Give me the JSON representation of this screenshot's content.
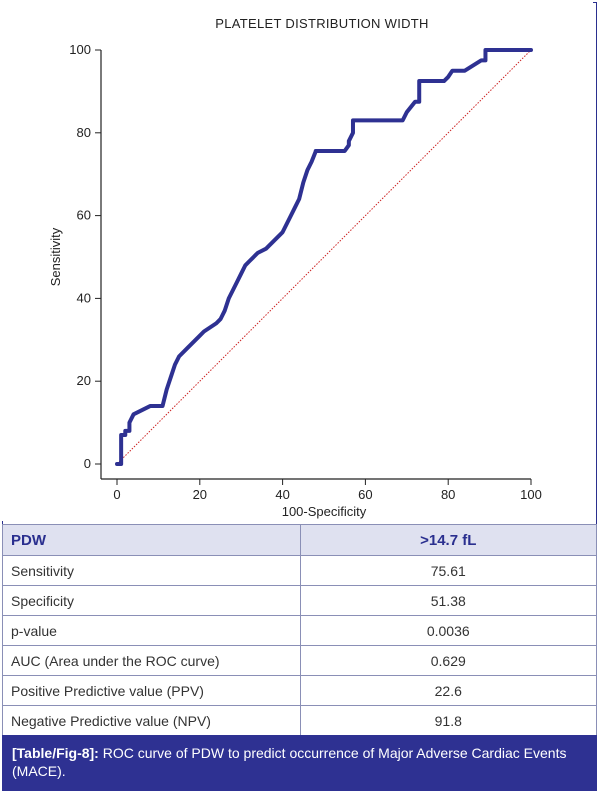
{
  "chart_data": {
    "type": "line",
    "title": "PLATELET DISTRIBUTION WIDTH",
    "xlabel": "100-Specificity",
    "ylabel": "Sensitivity",
    "xlim": [
      0,
      100
    ],
    "ylim": [
      0,
      100
    ],
    "xticks": [
      0,
      20,
      40,
      60,
      80,
      100
    ],
    "yticks": [
      0,
      20,
      40,
      60,
      80,
      100
    ],
    "series": [
      {
        "x": [
          0,
          1,
          1,
          2,
          2,
          3,
          3,
          4,
          8,
          11,
          12,
          13,
          14,
          15,
          17,
          18,
          20,
          21,
          24,
          25,
          26,
          27,
          28,
          29,
          30,
          31,
          32,
          33,
          34,
          36,
          38,
          40,
          41,
          42,
          43,
          44,
          45,
          46,
          47,
          48,
          48,
          53,
          55,
          56,
          56,
          57,
          57,
          61,
          65,
          69,
          70,
          72,
          73,
          73,
          76,
          79,
          80,
          81,
          84,
          88,
          89,
          89,
          100
        ],
        "y": [
          0,
          0,
          7,
          7,
          8,
          8,
          10,
          12,
          14,
          14,
          18,
          21,
          24,
          26,
          28,
          29,
          31,
          32,
          34,
          35,
          37,
          40,
          42,
          44,
          46,
          48,
          49,
          50,
          51,
          52,
          54,
          56,
          58,
          60,
          62,
          64,
          68,
          71,
          73,
          75.5,
          75.61,
          75.61,
          75.61,
          77,
          78,
          80,
          83,
          83,
          83,
          83,
          85,
          87.5,
          87.5,
          92.5,
          92.5,
          92.5,
          93.5,
          95,
          95,
          97.5,
          97.5,
          100,
          100
        ]
      },
      {
        "style": "reference-diagonal",
        "x": [
          0,
          100
        ],
        "y": [
          0,
          100
        ]
      }
    ],
    "colors": {
      "roc": "#2e3192",
      "diagonal": "#cc2222"
    }
  },
  "table": {
    "header": [
      "PDW",
      ">14.7 fL"
    ],
    "rows": [
      [
        "Sensitivity",
        "75.61"
      ],
      [
        "Specificity",
        "51.38"
      ],
      [
        "p-value",
        "0.0036"
      ],
      [
        "AUC (Area under the ROC curve)",
        "0.629"
      ],
      [
        "Positive Predictive value (PPV)",
        "22.6"
      ],
      [
        "Negative Predictive value (NPV)",
        "91.8"
      ]
    ]
  },
  "caption": {
    "label": "[Table/Fig-8]:",
    "text": " ROC curve of PDW to predict occurrence of Major Adverse Cardiac Events (MACE)."
  },
  "colors": {
    "accent": "#2e3192",
    "header_bg": "#dfe1f0",
    "border": "#8a8fb6"
  }
}
